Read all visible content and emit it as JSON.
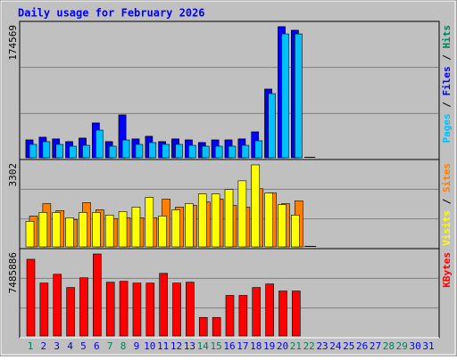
{
  "chart_data": [
    {
      "type": "bar",
      "title": "Daily usage for February 2026",
      "categories": [
        "1",
        "2",
        "3",
        "4",
        "5",
        "6",
        "7",
        "8",
        "9",
        "10",
        "11",
        "12",
        "13",
        "14",
        "15",
        "16",
        "17",
        "18",
        "19",
        "20",
        "21",
        "22",
        "23",
        "24",
        "25",
        "26",
        "27",
        "28",
        "29",
        "30",
        "31"
      ],
      "weekends": [
        "1",
        "7",
        "8",
        "14",
        "15",
        "21",
        "22",
        "28",
        "29"
      ],
      "weekend_color": "#00805c",
      "label_color": "#0000ff",
      "legend_separator": " / ",
      "ylim": [
        0,
        174569
      ],
      "yticks": [
        174569
      ],
      "series": [
        {
          "name": "Hits",
          "color": "#00805c",
          "values": [
            23700,
            27300,
            25000,
            21400,
            26100,
            46300,
            21400,
            57000,
            25000,
            28500,
            21400,
            25000,
            23700,
            20200,
            23700,
            23700,
            25000,
            34400,
            91400,
            174569,
            169800,
            0,
            null,
            null,
            null,
            null,
            null,
            null,
            null,
            null,
            null
          ]
        },
        {
          "name": "Files",
          "color": "#0000ff",
          "values": [
            23700,
            27300,
            25000,
            21400,
            26100,
            46300,
            21400,
            57000,
            25000,
            28500,
            21400,
            25000,
            23700,
            20200,
            23700,
            23700,
            25000,
            34400,
            91400,
            174569,
            169800,
            0,
            null,
            null,
            null,
            null,
            null,
            null,
            null,
            null,
            null
          ]
        },
        {
          "name": "Pages",
          "color": "#00c0ff",
          "values": [
            17800,
            21400,
            17800,
            15400,
            16600,
            36800,
            15400,
            23700,
            17800,
            20200,
            17800,
            17800,
            16600,
            15400,
            15400,
            15400,
            16600,
            22600,
            85500,
            165000,
            165000,
            0,
            null,
            null,
            null,
            null,
            null,
            null,
            null,
            null,
            null
          ]
        }
      ]
    },
    {
      "type": "bar",
      "ylim": [
        0,
        3302
      ],
      "yticks": [
        3302
      ],
      "legend_separator": " / ",
      "series": [
        {
          "name": "Sites",
          "color": "#ff8000",
          "values": [
            1240,
            1740,
            1460,
            1100,
            1780,
            1490,
            1140,
            1170,
            1170,
            1170,
            1920,
            1600,
            1670,
            1810,
            1920,
            1670,
            1600,
            2340,
            2170,
            1740,
            1850,
            0,
            null,
            null,
            null,
            null,
            null,
            null,
            null,
            null,
            null
          ]
        },
        {
          "name": "Visits",
          "color": "#ffff00",
          "values": [
            1030,
            1385,
            1385,
            1170,
            1385,
            1385,
            1280,
            1420,
            1600,
            1990,
            1240,
            1490,
            1740,
            2130,
            2130,
            2310,
            2660,
            3302,
            2170,
            1700,
            1280,
            0,
            null,
            null,
            null,
            null,
            null,
            null,
            null,
            null,
            null
          ]
        }
      ]
    },
    {
      "type": "bar",
      "ylim": [
        0,
        7485886
      ],
      "yticks": [
        7485886
      ],
      "series": [
        {
          "name": "KBytes",
          "color": "#ff0000",
          "values": [
            7003000,
            4830000,
            5634000,
            4427000,
            5312000,
            7485886,
            4910000,
            4990000,
            4830000,
            4830000,
            5715000,
            4830000,
            4910000,
            1690000,
            1690000,
            3703000,
            3703000,
            4427000,
            4749000,
            4105000,
            4105000,
            null,
            null,
            null,
            null,
            null,
            null,
            null,
            null,
            null,
            null
          ]
        }
      ]
    }
  ]
}
